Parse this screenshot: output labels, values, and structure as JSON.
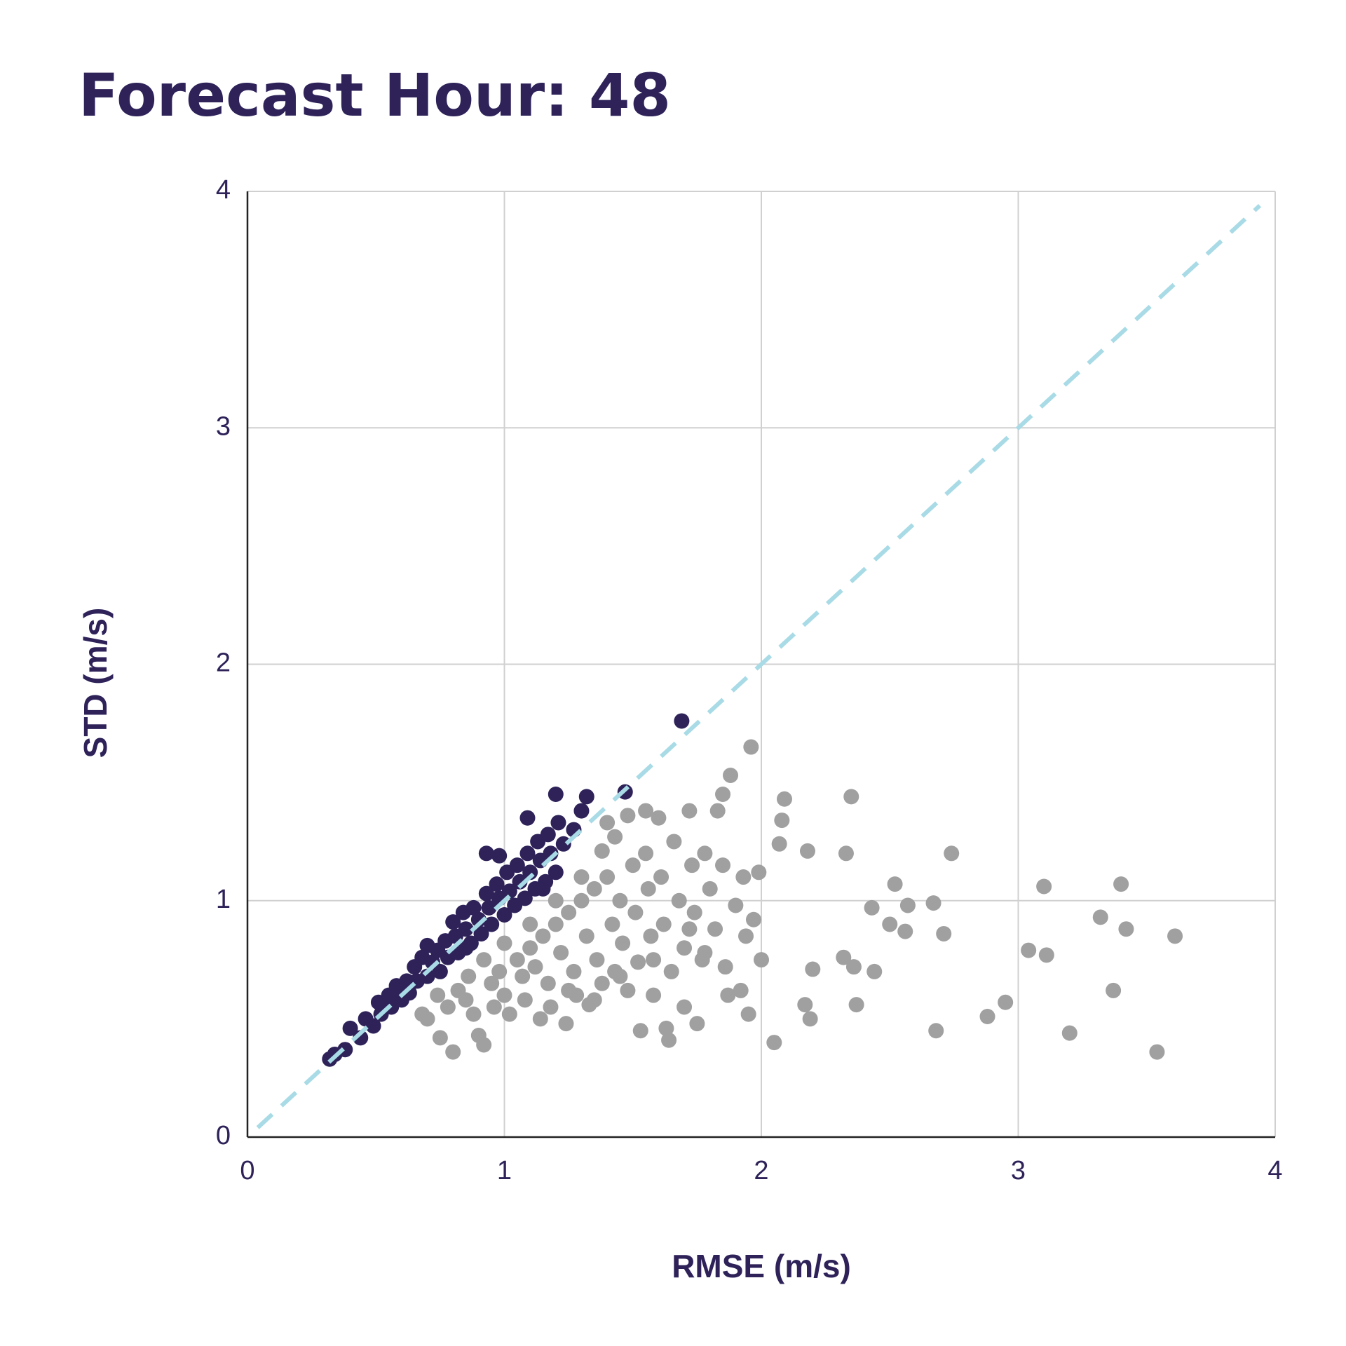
{
  "chart_data": {
    "type": "scatter",
    "title": "Forecast Hour: 48",
    "x_label": "RMSE (m/s)",
    "y_label": "STD (m/s)",
    "xlim": [
      0,
      4
    ],
    "ylim": [
      0,
      4
    ],
    "xticks": [
      0,
      1,
      2,
      3,
      4
    ],
    "yticks": [
      0,
      1,
      2,
      3,
      4
    ],
    "grid": true,
    "reference_line": {
      "x": [
        0.04,
        3.94
      ],
      "values": [
        0.04,
        3.94
      ],
      "color": "#a8dbe6",
      "dashed": true
    },
    "series": [
      {
        "color": "#a0a0a0",
        "x": [
          0.7,
          0.75,
          0.8,
          0.78,
          0.82,
          0.85,
          0.88,
          0.9,
          0.92,
          0.95,
          0.96,
          0.98,
          1.0,
          1.02,
          1.05,
          1.07,
          1.08,
          1.1,
          1.12,
          1.14,
          1.15,
          1.17,
          1.18,
          1.2,
          1.22,
          1.24,
          1.25,
          1.27,
          1.28,
          1.3,
          1.32,
          1.33,
          1.35,
          1.36,
          1.38,
          1.4,
          1.42,
          1.43,
          1.45,
          1.46,
          1.48,
          1.5,
          1.51,
          1.52,
          1.53,
          1.55,
          1.56,
          1.57,
          1.58,
          1.6,
          1.61,
          1.62,
          1.63,
          1.64,
          1.66,
          1.68,
          1.7,
          1.7,
          1.72,
          1.73,
          1.74,
          1.75,
          1.77,
          1.78,
          1.8,
          1.82,
          1.83,
          1.85,
          1.86,
          1.4,
          1.43,
          1.48,
          1.55,
          1.38,
          1.3,
          1.2,
          1.1,
          1.0,
          0.92,
          0.86,
          0.74,
          0.68,
          1.25,
          1.35,
          1.45,
          1.58,
          1.65,
          1.72,
          1.78,
          1.9,
          1.93,
          1.94,
          1.97,
          1.99,
          1.96,
          1.88,
          1.85,
          2.09,
          2.35,
          2.08,
          2.07,
          2.74,
          2.33,
          2.18,
          2.52,
          3.1,
          3.4,
          2.67,
          2.57,
          2.43,
          3.32,
          3.42,
          3.61,
          2.71,
          2.5,
          2.56,
          3.04,
          3.11,
          2.32,
          2.36,
          2.44,
          2.2,
          3.37,
          2.95,
          2.88,
          2.37,
          2.68,
          3.2,
          3.54,
          2.05,
          2.19,
          2.17,
          1.95,
          2.0,
          1.92,
          1.87
        ],
        "values": [
          0.5,
          0.42,
          0.36,
          0.55,
          0.62,
          0.58,
          0.52,
          0.43,
          0.39,
          0.65,
          0.55,
          0.7,
          0.6,
          0.52,
          0.75,
          0.68,
          0.58,
          0.8,
          0.72,
          0.5,
          0.85,
          0.65,
          0.55,
          0.9,
          0.78,
          0.48,
          0.95,
          0.7,
          0.6,
          1.0,
          0.85,
          0.56,
          1.05,
          0.75,
          0.65,
          1.1,
          0.9,
          0.7,
          1.0,
          0.82,
          0.62,
          1.15,
          0.95,
          0.74,
          0.45,
          1.2,
          1.05,
          0.85,
          0.6,
          1.35,
          1.1,
          0.9,
          0.46,
          0.41,
          1.25,
          1.0,
          0.8,
          0.55,
          1.38,
          1.15,
          0.95,
          0.48,
          0.75,
          1.2,
          1.05,
          0.88,
          1.38,
          1.15,
          0.72,
          1.33,
          1.27,
          1.36,
          1.38,
          1.21,
          1.1,
          1.0,
          0.9,
          0.82,
          0.75,
          0.68,
          0.6,
          0.52,
          0.62,
          0.58,
          0.68,
          0.75,
          0.7,
          0.88,
          0.78,
          0.98,
          1.1,
          0.85,
          0.92,
          1.12,
          1.65,
          1.53,
          1.45,
          1.43,
          1.44,
          1.34,
          1.24,
          1.2,
          1.2,
          1.21,
          1.07,
          1.06,
          1.07,
          0.99,
          0.98,
          0.97,
          0.93,
          0.88,
          0.85,
          0.86,
          0.9,
          0.87,
          0.79,
          0.77,
          0.76,
          0.72,
          0.7,
          0.71,
          0.62,
          0.57,
          0.51,
          0.56,
          0.45,
          0.44,
          0.36,
          0.4,
          0.5,
          0.56,
          0.52,
          0.75,
          0.62,
          0.6
        ]
      },
      {
        "color": "#2e2259",
        "x": [
          0.32,
          0.34,
          0.38,
          0.4,
          0.44,
          0.46,
          0.49,
          0.51,
          0.52,
          0.55,
          0.56,
          0.58,
          0.6,
          0.62,
          0.63,
          0.65,
          0.66,
          0.68,
          0.7,
          0.7,
          0.72,
          0.74,
          0.75,
          0.77,
          0.78,
          0.8,
          0.81,
          0.82,
          0.84,
          0.85,
          0.87,
          0.88,
          0.9,
          0.91,
          0.93,
          0.94,
          0.95,
          0.97,
          0.98,
          1.0,
          1.01,
          1.02,
          1.04,
          1.05,
          1.06,
          1.08,
          1.09,
          1.1,
          1.12,
          1.13,
          1.14,
          1.16,
          1.17,
          1.18,
          1.2,
          1.21,
          1.23,
          1.27,
          1.3,
          1.32,
          1.2,
          1.09,
          0.93,
          0.98,
          1.47,
          1.69,
          0.85,
          0.6,
          1.15
        ],
        "values": [
          0.33,
          0.35,
          0.37,
          0.46,
          0.42,
          0.5,
          0.47,
          0.57,
          0.52,
          0.6,
          0.55,
          0.64,
          0.58,
          0.66,
          0.61,
          0.72,
          0.66,
          0.76,
          0.68,
          0.81,
          0.74,
          0.79,
          0.7,
          0.83,
          0.76,
          0.91,
          0.85,
          0.78,
          0.95,
          0.88,
          0.82,
          0.97,
          0.92,
          0.86,
          1.03,
          0.97,
          0.9,
          1.07,
          1.01,
          0.94,
          1.12,
          1.04,
          0.98,
          1.15,
          1.08,
          1.01,
          1.2,
          1.12,
          1.05,
          1.25,
          1.17,
          1.08,
          1.28,
          1.2,
          1.12,
          1.33,
          1.24,
          1.3,
          1.38,
          1.44,
          1.45,
          1.35,
          1.2,
          1.19,
          1.46,
          1.76,
          0.8,
          0.62,
          1.05
        ]
      }
    ]
  }
}
